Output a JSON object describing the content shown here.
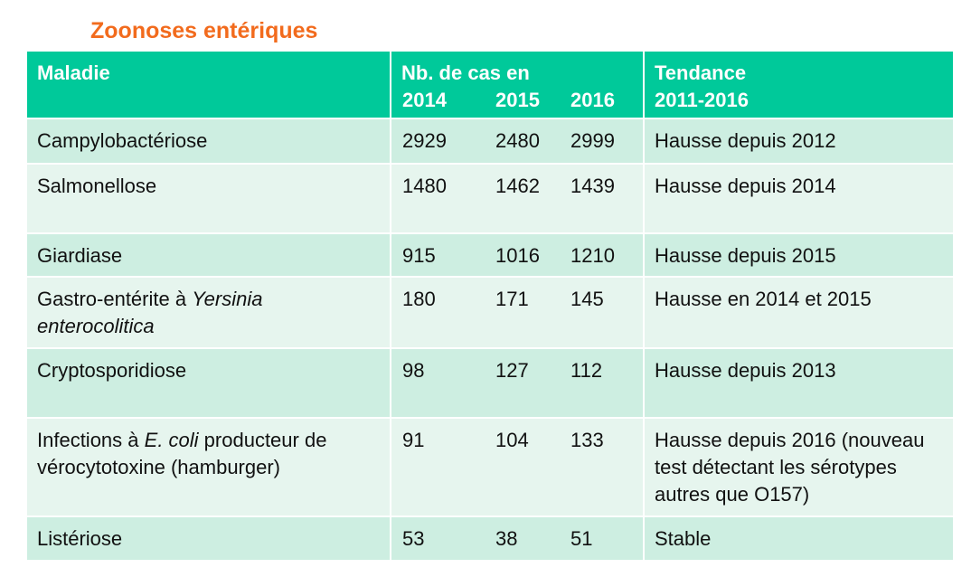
{
  "subtitle": "Zoonoses entériques",
  "table": {
    "header": {
      "disease": "Maladie",
      "cases": "Nb. de cas en",
      "years": [
        "2014",
        "2015",
        "2016"
      ],
      "trend": [
        "Tendance",
        "2011-2016"
      ]
    },
    "rows": [
      {
        "disease": [
          {
            "text": "Campylobactériose",
            "italic": false
          }
        ],
        "cases": [
          2929,
          2480,
          2999
        ],
        "trend": "Hausse depuis 2012"
      },
      {
        "disease": [
          {
            "text": "Salmonellose",
            "italic": false
          }
        ],
        "cases": [
          1480,
          1462,
          1439
        ],
        "trend": "Hausse depuis 2014"
      },
      {
        "disease": [
          {
            "text": "Giardiase",
            "italic": false
          }
        ],
        "cases": [
          915,
          1016,
          1210
        ],
        "trend": "Hausse depuis 2015"
      },
      {
        "disease": [
          {
            "text": "Gastro-entérite à ",
            "italic": false
          },
          {
            "text": "Yersinia enterocolitica",
            "italic": true
          }
        ],
        "cases": [
          180,
          171,
          145
        ],
        "trend": "Hausse en 2014 et 2015"
      },
      {
        "disease": [
          {
            "text": "Cryptosporidiose",
            "italic": false
          }
        ],
        "cases": [
          98,
          127,
          112
        ],
        "trend": "Hausse depuis 2013"
      },
      {
        "disease": [
          {
            "text": "Infections à ",
            "italic": false
          },
          {
            "text": "E. coli",
            "italic": true
          },
          {
            "text": " producteur de vérocytotoxine (hamburger)",
            "italic": false
          }
        ],
        "cases": [
          91,
          104,
          133
        ],
        "trend": "Hausse depuis 2016 (nouveau test détectant les sérotypes autres que O157)"
      },
      {
        "disease": [
          {
            "text": "Listériose",
            "italic": false
          }
        ],
        "cases": [
          53,
          38,
          51
        ],
        "trend": "Stable"
      }
    ]
  }
}
